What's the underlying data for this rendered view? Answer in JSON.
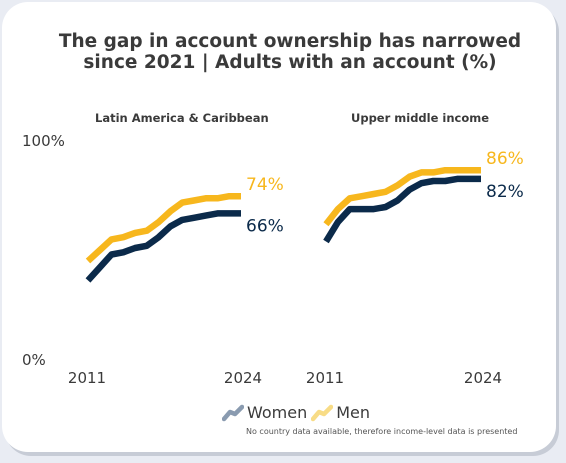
{
  "title": "The gap in account ownership has narrowed since 2021 | Adults with an account (%)",
  "legend": {
    "women": "Women",
    "men": "Men"
  },
  "note": "No country data available, therefore income-level data is presented",
  "colors": {
    "women": "#0b2a4a",
    "men": "#f7b71d",
    "women_legend": "#8a9bb0",
    "men_legend": "#f8dc86",
    "text": "#3a3a3a"
  },
  "chart_data": [
    {
      "type": "line",
      "title": "Latin America & Caribbean",
      "ylim": [
        0,
        100
      ],
      "y_tick_labels": [
        "100%",
        "0%"
      ],
      "x_start_label": "2011",
      "x_end_label": "2024",
      "x_range": [
        2011,
        2024
      ],
      "series": [
        {
          "name": "Women",
          "x": [
            2011,
            2012,
            2013,
            2014,
            2015,
            2016,
            2017,
            2018,
            2019,
            2020,
            2021,
            2022,
            2023,
            2024
          ],
          "y": [
            35,
            41,
            47,
            48,
            50,
            51,
            55,
            60,
            63,
            64,
            65,
            66,
            66,
            66
          ],
          "end_label": "66%"
        },
        {
          "name": "Men",
          "x": [
            2011,
            2012,
            2013,
            2014,
            2015,
            2016,
            2017,
            2018,
            2019,
            2020,
            2021,
            2022,
            2023,
            2024
          ],
          "y": [
            44,
            49,
            54,
            55,
            57,
            58,
            62,
            67,
            71,
            72,
            73,
            73,
            74,
            74
          ],
          "end_label": "74%"
        }
      ]
    },
    {
      "type": "line",
      "title": "Upper middle income",
      "ylim": [
        0,
        100
      ],
      "x_start_label": "2011",
      "x_end_label": "2024",
      "x_range": [
        2011,
        2024
      ],
      "series": [
        {
          "name": "Women",
          "x": [
            2011,
            2012,
            2013,
            2014,
            2015,
            2016,
            2017,
            2018,
            2019,
            2020,
            2021,
            2022,
            2023,
            2024
          ],
          "y": [
            53,
            62,
            68,
            68,
            68,
            69,
            72,
            77,
            80,
            81,
            81,
            82,
            82,
            82
          ],
          "end_label": "82%"
        },
        {
          "name": "Men",
          "x": [
            2011,
            2012,
            2013,
            2014,
            2015,
            2016,
            2017,
            2018,
            2019,
            2020,
            2021,
            2022,
            2023,
            2024
          ],
          "y": [
            61,
            68,
            73,
            74,
            75,
            76,
            79,
            83,
            85,
            85,
            86,
            86,
            86,
            86
          ],
          "end_label": "86%"
        }
      ]
    }
  ]
}
